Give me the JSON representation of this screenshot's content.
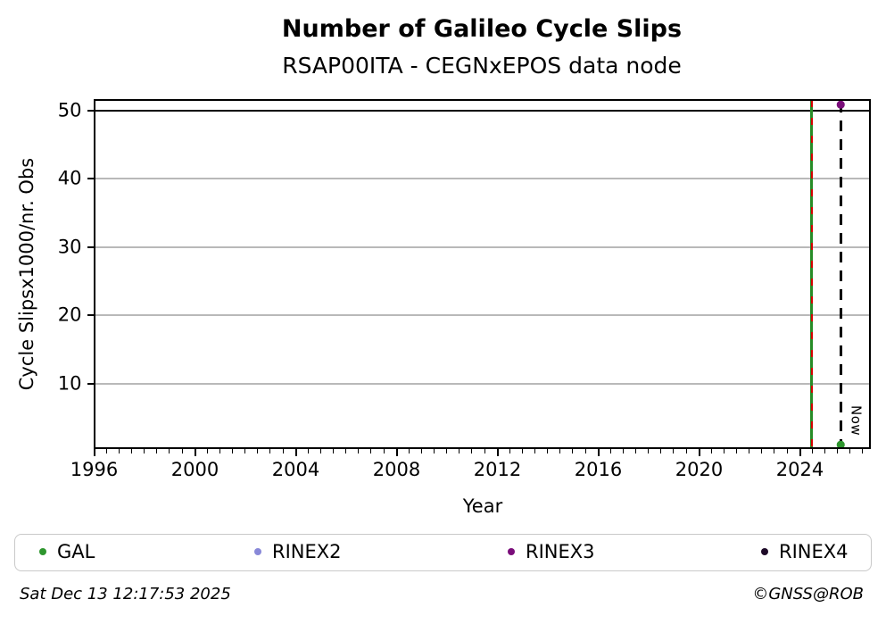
{
  "title": "Number of Galileo Cycle Slips",
  "subtitle": "RSAP00ITA - CEGNxEPOS data node",
  "footer": {
    "timestamp": "Sat Dec 13 12:17:53 2025",
    "credit": "©GNSS@ROB"
  },
  "legend": {
    "items": [
      {
        "label": "GAL",
        "color": "#2e962e"
      },
      {
        "label": "RINEX2",
        "color": "#8888d8"
      },
      {
        "label": "RINEX3",
        "color": "#7a0d7a"
      },
      {
        "label": "RINEX4",
        "color": "#1e0a28"
      }
    ]
  },
  "chart_data": {
    "type": "scatter",
    "title": "Number of Galileo Cycle Slips",
    "subtitle": "RSAP00ITA - CEGNxEPOS data node",
    "xlabel": "Year",
    "ylabel": "Cycle Slipsx1000/nr. Obs",
    "xlim": [
      1996,
      2026.76
    ],
    "ylim": [
      0.46,
      51.57
    ],
    "x_ticks": [
      1996,
      2000,
      2004,
      2008,
      2012,
      2016,
      2020,
      2024
    ],
    "x_minor_step": 0.5,
    "y_ticks": [
      10,
      20,
      30,
      40,
      50
    ],
    "grid": true,
    "grid_color": "#b9b9b9",
    "emphasized_gridline": {
      "y": 50,
      "color": "#000000"
    },
    "series": [
      {
        "name": "GAL",
        "color": "#2e962e",
        "points": [
          {
            "x": 2025.62,
            "y": 1.0
          }
        ]
      },
      {
        "name": "RINEX2",
        "color": "#8888d8",
        "points": []
      },
      {
        "name": "RINEX3",
        "color": "#7a0d7a",
        "points": [
          {
            "x": 2025.62,
            "y": 50.85
          }
        ]
      },
      {
        "name": "RINEX4",
        "color": "#1e0a28",
        "points": []
      }
    ],
    "vlines": [
      {
        "x": 2024.46,
        "style": "green-solid-red-dashed",
        "green": "#278c27",
        "red": "#d40000",
        "label": ""
      },
      {
        "x": 2025.62,
        "style": "black-dashed",
        "label": "Now"
      }
    ],
    "legend_position": "bottom"
  }
}
